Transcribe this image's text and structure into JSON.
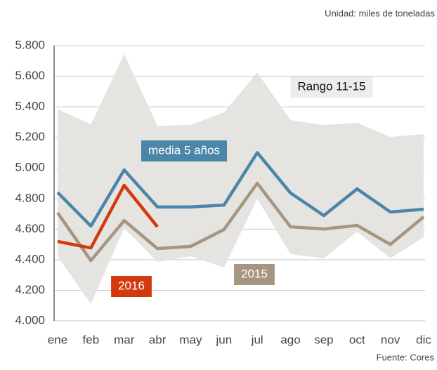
{
  "chart_data": {
    "type": "line",
    "unit_note": "Unidad: miles de toneladas",
    "source": "Fuente: Cores",
    "categories": [
      "ene",
      "feb",
      "mar",
      "abr",
      "may",
      "jun",
      "jul",
      "ago",
      "sep",
      "oct",
      "nov",
      "dic"
    ],
    "ylim": [
      4000,
      5800
    ],
    "yticks": [
      {
        "value": 4000,
        "label": "4.000"
      },
      {
        "value": 4200,
        "label": "4.200"
      },
      {
        "value": 4400,
        "label": "4.400"
      },
      {
        "value": 4600,
        "label": "4.600"
      },
      {
        "value": 4800,
        "label": "4.800"
      },
      {
        "value": 5000,
        "label": "5.000"
      },
      {
        "value": 5200,
        "label": "5.200"
      },
      {
        "value": 5400,
        "label": "5.400"
      },
      {
        "value": 5600,
        "label": "5.600"
      },
      {
        "value": 5800,
        "label": "5.800"
      }
    ],
    "grid": true,
    "band": {
      "name": "Rango 11-15",
      "color": "#e6e4e1",
      "upper": [
        5386,
        5285,
        5745,
        5276,
        5281,
        5364,
        5625,
        5313,
        5281,
        5295,
        5203,
        5221
      ],
      "lower": [
        4422,
        4110,
        4606,
        4386,
        4422,
        4349,
        4799,
        4436,
        4409,
        4583,
        4409,
        4546
      ]
    },
    "series": [
      {
        "name": "media 5 años",
        "color": "#4a86a8",
        "values": [
          4840,
          4620,
          4987,
          4745,
          4745,
          4757,
          5100,
          4836,
          4689,
          4863,
          4712,
          4730
        ]
      },
      {
        "name": "2015",
        "color": "#a89581",
        "values": [
          4707,
          4394,
          4656,
          4473,
          4487,
          4597,
          4900,
          4615,
          4601,
          4624,
          4500,
          4680
        ]
      },
      {
        "name": "2016",
        "color": "#d23a0e",
        "values": [
          4519,
          4477,
          4886,
          4615,
          null,
          null,
          null,
          null,
          null,
          null,
          null,
          null
        ]
      }
    ]
  }
}
